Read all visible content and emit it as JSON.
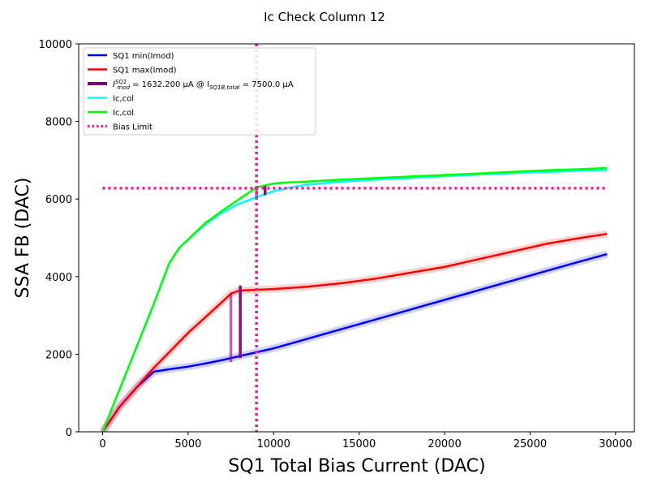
{
  "chart_data": {
    "type": "line",
    "title": "Ic Check Column 12",
    "xlabel": "SQ1 Total Bias Current (DAC)",
    "ylabel": "SSA FB (DAC)",
    "xlim": [
      -1400,
      31100
    ],
    "ylim": [
      0,
      10000
    ],
    "xticks": [
      0,
      5000,
      10000,
      15000,
      20000,
      25000,
      30000
    ],
    "yticks": [
      0,
      2000,
      4000,
      6000,
      8000,
      10000
    ],
    "legend_position": "top-left",
    "grid": false,
    "legend": [
      {
        "label": "SQ1 min(Imod)",
        "color": "#0000ff",
        "style": "solid"
      },
      {
        "label": "SQ1 max(Imod)",
        "color": "#ff0000",
        "style": "solid"
      },
      {
        "label_pre": "I",
        "label_sup": "SQ1",
        "label_sub": "mod",
        "label_mid": " = 1632.200 μA @ I",
        "label_sub2": "SQ1B,total",
        "label_post": " = 7500.0 μA",
        "color": "#800080",
        "style": "thick"
      },
      {
        "label": "Ic,col",
        "color": "#00ffff",
        "style": "solid"
      },
      {
        "label": "Ic,col",
        "color": "#00ff00",
        "style": "solid"
      },
      {
        "label": "Bias Limit",
        "color": "#ff1493",
        "style": "dotted"
      }
    ],
    "series": [
      {
        "color": "#0000ff",
        "x": [
          0,
          1000,
          2000,
          3000,
          4000,
          5000,
          6000,
          7000,
          8000,
          9000,
          10000,
          12000,
          14000,
          16000,
          18000,
          20000,
          22000,
          24000,
          26000,
          28000,
          29500
        ],
        "y": [
          0,
          650,
          1150,
          1550,
          1620,
          1680,
          1760,
          1850,
          1950,
          2050,
          2150,
          2400,
          2650,
          2900,
          3150,
          3400,
          3650,
          3900,
          4150,
          4400,
          4580
        ]
      },
      {
        "color": "#ff0000",
        "x": [
          0,
          1000,
          2000,
          3000,
          4000,
          5000,
          6000,
          7000,
          7500,
          8000,
          9000,
          10000,
          12000,
          14000,
          16000,
          18000,
          20000,
          22000,
          24000,
          26000,
          28000,
          29500
        ],
        "y": [
          0,
          650,
          1150,
          1650,
          2100,
          2550,
          2950,
          3350,
          3560,
          3640,
          3660,
          3680,
          3740,
          3830,
          3950,
          4100,
          4250,
          4450,
          4650,
          4850,
          5000,
          5100
        ]
      },
      {
        "color": "#00ffff",
        "x": [
          0,
          1000,
          2000,
          3000,
          3900,
          4500,
          6000,
          7000,
          8000,
          9000,
          10000,
          11000,
          12000,
          14000,
          16000,
          18000,
          20000,
          22000,
          24000,
          26000,
          28000,
          29500
        ],
        "y": [
          0,
          1100,
          2200,
          3300,
          4350,
          4750,
          5350,
          5650,
          5880,
          6050,
          6200,
          6300,
          6370,
          6450,
          6500,
          6540,
          6590,
          6630,
          6670,
          6700,
          6730,
          6750
        ]
      },
      {
        "color": "#00ff00",
        "x": [
          0,
          1000,
          2000,
          3000,
          3900,
          4500,
          6000,
          7000,
          8000,
          9000,
          10000,
          11000,
          12000,
          14000,
          16000,
          18000,
          20000,
          22000,
          24000,
          26000,
          28000,
          29500
        ],
        "y": [
          0,
          1100,
          2200,
          3300,
          4350,
          4750,
          5380,
          5700,
          6000,
          6300,
          6400,
          6430,
          6450,
          6500,
          6540,
          6580,
          6620,
          6660,
          6700,
          6740,
          6770,
          6800
        ]
      }
    ],
    "imod_markers": [
      {
        "x": 7500,
        "y_low": 1800,
        "y_high": 3580,
        "color": "#800080"
      },
      {
        "x": 8050,
        "y_low": 1900,
        "y_high": 3770,
        "color": "#800080"
      },
      {
        "x": 9000,
        "y_low": 6050,
        "y_high": 6330,
        "color": "#800080"
      },
      {
        "x": 9500,
        "y_low": 6100,
        "y_high": 6330,
        "color": "#800080"
      }
    ],
    "bias_limit": {
      "x": 9000,
      "y": 6280,
      "color": "#ff1493"
    }
  }
}
